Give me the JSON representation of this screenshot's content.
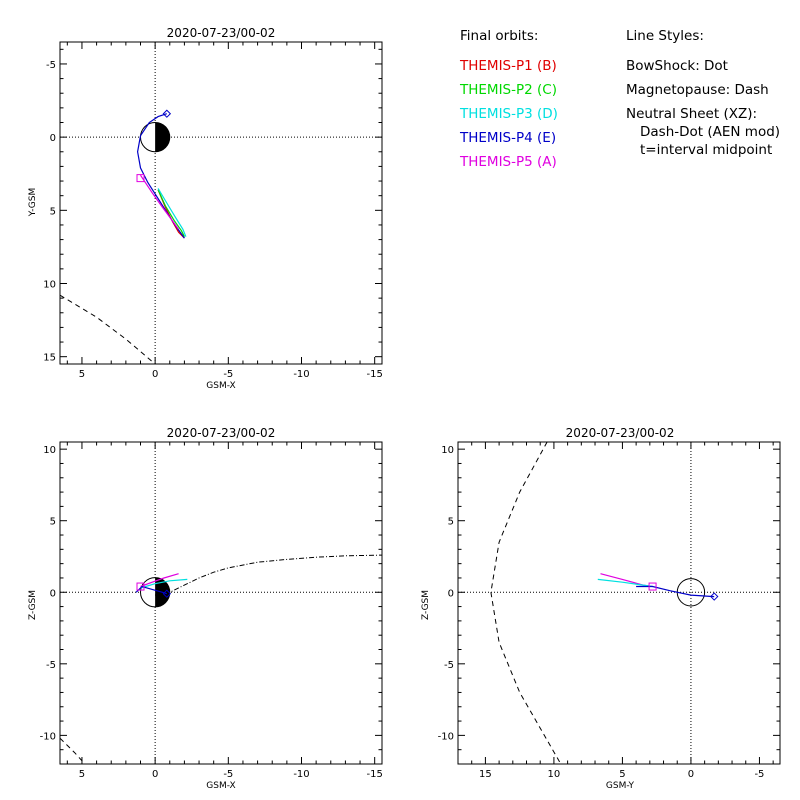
{
  "legend": {
    "title": "Final orbits:",
    "probes": [
      {
        "label": "THEMIS-P1 (B)",
        "color": "#e00000"
      },
      {
        "label": "THEMIS-P2 (C)",
        "color": "#00d800"
      },
      {
        "label": "THEMIS-P3 (D)",
        "color": "#00e0e0"
      },
      {
        "label": "THEMIS-P4 (E)",
        "color": "#0000c8"
      },
      {
        "label": "THEMIS-P5 (A)",
        "color": "#e000e0"
      }
    ]
  },
  "line_styles": {
    "title": "Line Styles:",
    "lines": [
      "BowShock: Dot",
      "Magnetopause: Dash",
      "Neutral Sheet (XZ):",
      "Dash-Dot (AEN mod)",
      "t=interval midpoint"
    ]
  },
  "chart_data": [
    {
      "type": "line",
      "title": "2020-07-23/00-02",
      "xlabel": "GSM-X",
      "ylabel": "Y-GSM",
      "xlim": [
        6.5,
        -15.5
      ],
      "ylim": [
        -6.5,
        15.5
      ],
      "y_reversed": true,
      "xticks": [
        5,
        0,
        -5,
        -10,
        -15
      ],
      "yticks": [
        -5,
        0,
        5,
        10,
        15
      ],
      "earth": {
        "radius": 1,
        "night_side": "negative-x"
      },
      "magnetopause": [
        [
          6.5,
          10.8
        ],
        [
          4.0,
          12.3
        ],
        [
          2.0,
          13.8
        ],
        [
          0.0,
          15.5
        ]
      ],
      "series": [
        {
          "color": "#e00000",
          "points": [
            [
              -0.2,
              3.6
            ],
            [
              -0.7,
              4.8
            ],
            [
              -1.2,
              5.8
            ],
            [
              -1.6,
              6.5
            ],
            [
              -2.0,
              6.9
            ]
          ]
        },
        {
          "color": "#00d800",
          "points": [
            [
              -0.2,
              3.6
            ],
            [
              -0.7,
              4.7
            ],
            [
              -1.3,
              5.7
            ],
            [
              -1.8,
              6.4
            ],
            [
              -2.0,
              6.8
            ]
          ]
        },
        {
          "color": "#00e0e0",
          "points": [
            [
              -0.2,
              3.5
            ],
            [
              -0.8,
              4.5
            ],
            [
              -1.4,
              5.5
            ],
            [
              -1.9,
              6.3
            ],
            [
              -2.1,
              6.8
            ]
          ]
        },
        {
          "color": "#0000c8",
          "points": [
            [
              -0.8,
              -1.6
            ],
            [
              -0.2,
              -1.4
            ],
            [
              0.4,
              -1.0
            ],
            [
              1.0,
              -0.1
            ],
            [
              1.2,
              1.0
            ],
            [
              1.0,
              2.1
            ],
            [
              0.5,
              3.1
            ],
            [
              -0.2,
              4.2
            ],
            [
              -0.9,
              5.3
            ],
            [
              -1.5,
              6.2
            ],
            [
              -2.0,
              6.9
            ]
          ]
        },
        {
          "color": "#e000e0",
          "points": [
            [
              1.0,
              2.6
            ],
            [
              0.2,
              3.8
            ],
            [
              -0.5,
              4.8
            ],
            [
              -1.1,
              5.6
            ],
            [
              -1.6,
              6.3
            ]
          ]
        }
      ],
      "markers": [
        {
          "shape": "diamond",
          "color": "#0000c8",
          "x": -0.8,
          "y": -1.6
        },
        {
          "shape": "square",
          "color": "#e000e0",
          "x": 1.0,
          "y": 2.8
        }
      ]
    },
    {
      "type": "line",
      "title": "2020-07-23/00-02",
      "xlabel": "GSM-X",
      "ylabel": "Z-GSM",
      "xlim": [
        6.5,
        -15.5
      ],
      "ylim": [
        -12,
        10.5
      ],
      "y_reversed": false,
      "xticks": [
        5,
        0,
        -5,
        -10,
        -15
      ],
      "yticks": [
        -10,
        -5,
        0,
        5,
        10
      ],
      "earth": {
        "radius": 1,
        "night_side": "negative-x"
      },
      "magnetopause": [
        [
          6.5,
          -10.2
        ],
        [
          5.5,
          -11.2
        ],
        [
          4.8,
          -12
        ]
      ],
      "neutral_sheet": [
        [
          0.0,
          -0.2
        ],
        [
          -1.0,
          0.0
        ],
        [
          -2.0,
          0.5
        ],
        [
          -3.0,
          1.0
        ],
        [
          -4.0,
          1.4
        ],
        [
          -5.0,
          1.7
        ],
        [
          -7.0,
          2.1
        ],
        [
          -9.0,
          2.3
        ],
        [
          -11.0,
          2.45
        ],
        [
          -13.0,
          2.55
        ],
        [
          -15.5,
          2.6
        ]
      ],
      "series": [
        {
          "color": "#e000e0",
          "points": [
            [
              1.0,
              0.4
            ],
            [
              0.2,
              0.7
            ],
            [
              -0.6,
              1.0
            ],
            [
              -1.6,
              1.3
            ]
          ]
        },
        {
          "color": "#00e0e0",
          "points": [
            [
              1.0,
              0.3
            ],
            [
              0.0,
              0.6
            ],
            [
              -1.0,
              0.8
            ],
            [
              -2.2,
              0.9
            ]
          ]
        },
        {
          "color": "#0000c8",
          "points": [
            [
              1.3,
              0.0
            ],
            [
              0.9,
              0.4
            ],
            [
              0.2,
              0.2
            ],
            [
              -0.5,
              0.0
            ],
            [
              -0.8,
              -0.1
            ]
          ]
        }
      ],
      "markers": [
        {
          "shape": "diamond",
          "color": "#0000c8",
          "x": -0.8,
          "y": -0.1
        },
        {
          "shape": "square",
          "color": "#e000e0",
          "x": 1.0,
          "y": 0.4
        }
      ]
    },
    {
      "type": "line",
      "title": "2020-07-23/00-02",
      "xlabel": "GSM-Y",
      "ylabel": "Z-GSM",
      "xlim": [
        17,
        -6.5
      ],
      "ylim": [
        -12,
        10.5
      ],
      "y_reversed": false,
      "xticks": [
        15,
        10,
        5,
        0,
        -5
      ],
      "yticks": [
        -10,
        -5,
        0,
        5,
        10
      ],
      "earth": {
        "radius": 1,
        "night_side": "none"
      },
      "magnetopause": [
        [
          10.5,
          10.5
        ],
        [
          12.5,
          7.0
        ],
        [
          14.0,
          3.5
        ],
        [
          14.6,
          0.0
        ],
        [
          14.0,
          -3.5
        ],
        [
          12.5,
          -7.0
        ],
        [
          9.5,
          -12.0
        ]
      ],
      "series": [
        {
          "color": "#e000e0",
          "points": [
            [
              6.6,
              1.3
            ],
            [
              5.0,
              0.9
            ],
            [
              3.5,
              0.5
            ],
            [
              2.8,
              0.4
            ]
          ]
        },
        {
          "color": "#00e0e0",
          "points": [
            [
              6.8,
              0.9
            ],
            [
              5.0,
              0.7
            ],
            [
              3.5,
              0.5
            ],
            [
              2.8,
              0.4
            ]
          ]
        },
        {
          "color": "#0000c8",
          "points": [
            [
              4.0,
              0.4
            ],
            [
              2.8,
              0.4
            ],
            [
              1.5,
              0.1
            ],
            [
              0.0,
              -0.2
            ],
            [
              -1.7,
              -0.3
            ]
          ]
        }
      ],
      "markers": [
        {
          "shape": "diamond",
          "color": "#0000c8",
          "x": -1.7,
          "y": -0.3
        },
        {
          "shape": "square",
          "color": "#e000e0",
          "x": 2.8,
          "y": 0.4
        }
      ]
    }
  ]
}
